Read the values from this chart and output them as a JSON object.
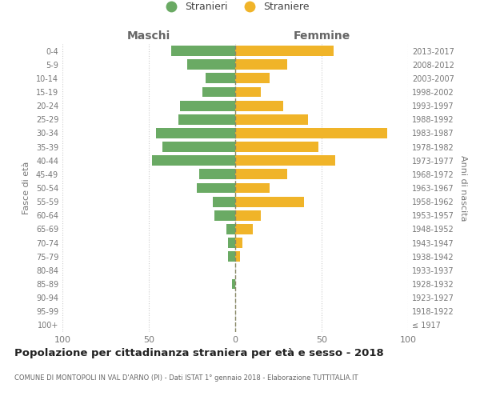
{
  "age_groups": [
    "100+",
    "95-99",
    "90-94",
    "85-89",
    "80-84",
    "75-79",
    "70-74",
    "65-69",
    "60-64",
    "55-59",
    "50-54",
    "45-49",
    "40-44",
    "35-39",
    "30-34",
    "25-29",
    "20-24",
    "15-19",
    "10-14",
    "5-9",
    "0-4"
  ],
  "birth_years": [
    "≤ 1917",
    "1918-1922",
    "1923-1927",
    "1928-1932",
    "1933-1937",
    "1938-1942",
    "1943-1947",
    "1948-1952",
    "1953-1957",
    "1958-1962",
    "1963-1967",
    "1968-1972",
    "1973-1977",
    "1978-1982",
    "1983-1987",
    "1988-1992",
    "1993-1997",
    "1998-2002",
    "2003-2007",
    "2008-2012",
    "2013-2017"
  ],
  "maschi": [
    0,
    0,
    0,
    2,
    0,
    4,
    4,
    5,
    12,
    13,
    22,
    21,
    48,
    42,
    46,
    33,
    32,
    19,
    17,
    28,
    37
  ],
  "femmine": [
    0,
    0,
    0,
    0,
    0,
    3,
    4,
    10,
    15,
    40,
    20,
    30,
    58,
    48,
    88,
    42,
    28,
    15,
    20,
    30,
    57
  ],
  "male_color": "#6aaa64",
  "female_color": "#f0b429",
  "title": "Popolazione per cittadinanza straniera per età e sesso - 2018",
  "subtitle": "COMUNE DI MONTOPOLI IN VAL D'ARNO (PI) - Dati ISTAT 1° gennaio 2018 - Elaborazione TUTTITALIA.IT",
  "xlabel_left": "Maschi",
  "xlabel_right": "Femmine",
  "ylabel": "Fasce di età",
  "ylabel_right": "Anni di nascita",
  "legend_male": "Stranieri",
  "legend_female": "Straniere",
  "xlim": 100,
  "background_color": "#ffffff",
  "grid_color": "#cccccc"
}
